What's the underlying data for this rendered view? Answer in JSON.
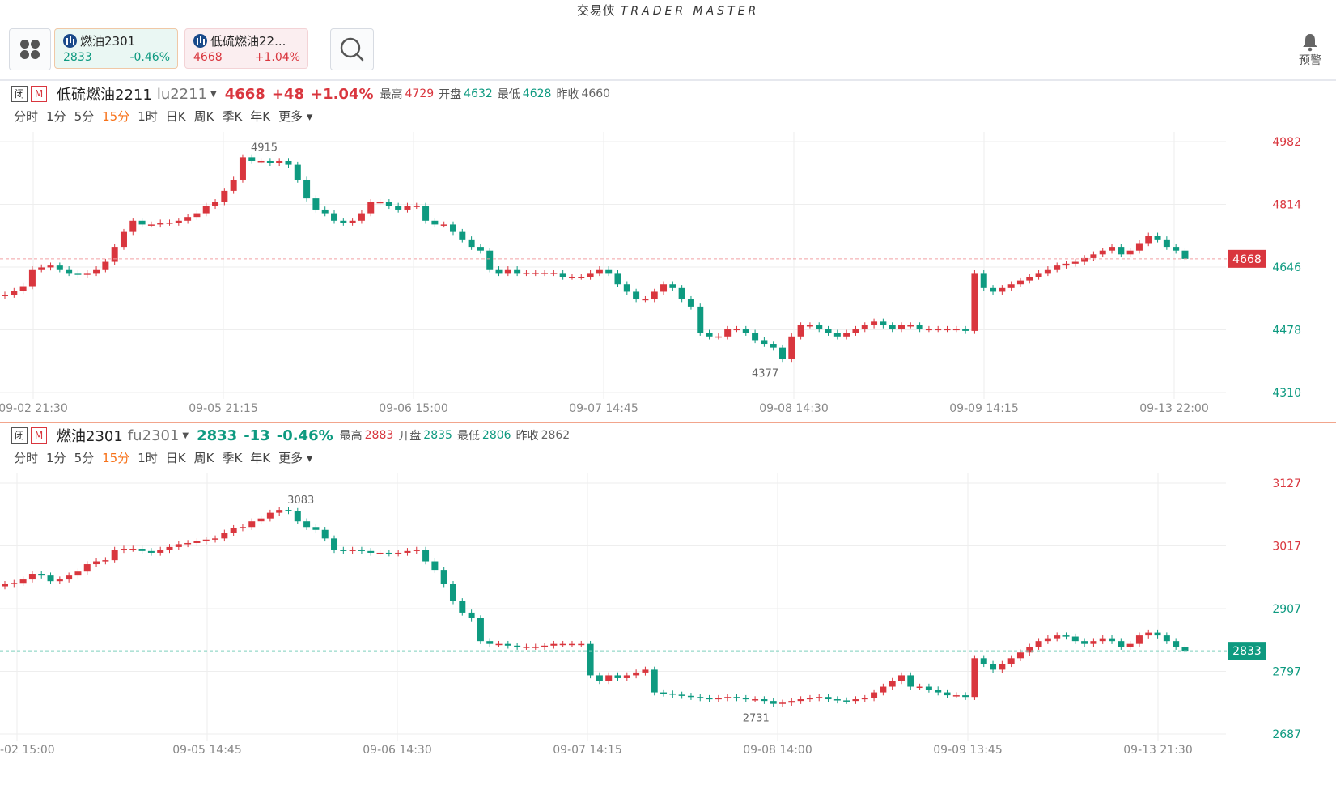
{
  "app": {
    "title_cn": "交易侠",
    "title_en": "TRADER MASTER"
  },
  "topbar": {
    "tickers": [
      {
        "name": "燃油2301",
        "price": "2833",
        "change": "-0.46%",
        "direction": "down"
      },
      {
        "name": "低硫燃油22...",
        "price": "4668",
        "change": "+1.04%",
        "direction": "up"
      }
    ],
    "alarm_label": "预警"
  },
  "colors": {
    "up": "#d9363e",
    "down": "#0e9a80",
    "accent": "#f7721a",
    "grid": "#eeeeee"
  },
  "panels": [
    {
      "tag_closed": "闭",
      "tag_m": "M",
      "name": "低硫燃油2211",
      "code": "lu2211",
      "price": "4668",
      "change": "+48",
      "pct": "+1.04%",
      "direction": "up",
      "high_label": "最高",
      "high": "4729",
      "open_label": "开盘",
      "open": "4632",
      "low_label": "最低",
      "low": "4628",
      "prev_label": "昨收",
      "prev": "4660",
      "periods": [
        "分时",
        "1分",
        "5分",
        "15分",
        "1时",
        "日K",
        "周K",
        "季K",
        "年K",
        "更多"
      ],
      "active_period": "15分",
      "y_ticks": [
        "4982",
        "4814",
        "4646",
        "4478",
        "4310"
      ],
      "x_ticks": [
        "09-02 21:30",
        "09-05 21:15",
        "09-06 15:00",
        "09-07 14:45",
        "09-08 14:30",
        "09-09 14:15",
        "09-13 22:00"
      ],
      "last_price_label": "4668",
      "max_label": "4915",
      "min_label": "4377"
    },
    {
      "tag_closed": "闭",
      "tag_m": "M",
      "name": "燃油2301",
      "code": "fu2301",
      "price": "2833",
      "change": "-13",
      "pct": "-0.46%",
      "direction": "down",
      "high_label": "最高",
      "high": "2883",
      "open_label": "开盘",
      "open": "2835",
      "low_label": "最低",
      "low": "2806",
      "prev_label": "昨收",
      "prev": "2862",
      "periods": [
        "分时",
        "1分",
        "5分",
        "15分",
        "1时",
        "日K",
        "周K",
        "季K",
        "年K",
        "更多"
      ],
      "active_period": "15分",
      "y_ticks": [
        "3127",
        "3017",
        "2907",
        "2797",
        "2687"
      ],
      "x_ticks": [
        "-02 15:00",
        "09-05 14:45",
        "09-06 14:30",
        "09-07 14:15",
        "09-08 14:00",
        "09-09 13:45",
        "09-13 21:30"
      ],
      "last_price_label": "2833",
      "max_label": "3083",
      "min_label": "2731"
    }
  ],
  "chart_data": [
    {
      "type": "candlestick",
      "title": "低硫燃油2211 lu2211",
      "ylim": [
        4310,
        4982
      ],
      "y_ticks": [
        4982,
        4814,
        4646,
        4478,
        4310
      ],
      "x_ticks": [
        "09-02 21:30",
        "09-05 21:15",
        "09-06 15:00",
        "09-07 14:45",
        "09-08 14:30",
        "09-09 14:15",
        "09-13 22:00"
      ],
      "last": 4668,
      "close_path": [
        4572,
        4582,
        4595,
        4640,
        4645,
        4650,
        4640,
        4630,
        4625,
        4630,
        4640,
        4660,
        4700,
        4740,
        4770,
        4760,
        4760,
        4765,
        4765,
        4770,
        4780,
        4790,
        4810,
        4820,
        4850,
        4880,
        4940,
        4930,
        4930,
        4925,
        4930,
        4920,
        4880,
        4830,
        4800,
        4790,
        4770,
        4765,
        4770,
        4790,
        4820,
        4820,
        4810,
        4800,
        4810,
        4810,
        4770,
        4760,
        4760,
        4740,
        4720,
        4700,
        4690,
        4640,
        4630,
        4640,
        4630,
        4630,
        4630,
        4630,
        4630,
        4620,
        4620,
        4620,
        4630,
        4640,
        4630,
        4600,
        4580,
        4560,
        4560,
        4580,
        4600,
        4590,
        4560,
        4540,
        4470,
        4460,
        4460,
        4480,
        4480,
        4470,
        4450,
        4440,
        4430,
        4400,
        4460,
        4490,
        4490,
        4480,
        4470,
        4460,
        4470,
        4480,
        4490,
        4500,
        4490,
        4480,
        4490,
        4490,
        4480,
        4480,
        4480,
        4480,
        4480,
        4475,
        4630,
        4590,
        4580,
        4590,
        4600,
        4610,
        4620,
        4630,
        4640,
        4650,
        4655,
        4660,
        4670,
        4680,
        4690,
        4700,
        4680,
        4690,
        4710,
        4730,
        4720,
        4700,
        4690,
        4668
      ]
    },
    {
      "type": "candlestick",
      "title": "燃油2301 fu2301",
      "ylim": [
        2687,
        3127
      ],
      "y_ticks": [
        3127,
        3017,
        2907,
        2797,
        2687
      ],
      "x_ticks": [
        "-02 15:00",
        "09-05 14:45",
        "09-06 14:30",
        "09-07 14:15",
        "09-08 14:00",
        "09-09 13:45",
        "09-13 21:30"
      ],
      "last": 2833,
      "close_path": [
        2950,
        2952,
        2958,
        2968,
        2965,
        2955,
        2958,
        2965,
        2972,
        2985,
        2990,
        2992,
        3010,
        3012,
        3012,
        3008,
        3005,
        3010,
        3015,
        3020,
        3022,
        3025,
        3028,
        3030,
        3040,
        3048,
        3050,
        3060,
        3065,
        3075,
        3080,
        3078,
        3060,
        3050,
        3045,
        3030,
        3010,
        3008,
        3010,
        3008,
        3005,
        3005,
        3004,
        3005,
        3008,
        3010,
        2990,
        2975,
        2950,
        2920,
        2900,
        2890,
        2850,
        2845,
        2845,
        2842,
        2840,
        2840,
        2840,
        2842,
        2845,
        2845,
        2845,
        2845,
        2790,
        2780,
        2790,
        2785,
        2790,
        2795,
        2800,
        2760,
        2758,
        2756,
        2754,
        2752,
        2750,
        2748,
        2750,
        2752,
        2750,
        2748,
        2748,
        2745,
        2740,
        2742,
        2745,
        2748,
        2750,
        2752,
        2748,
        2746,
        2745,
        2748,
        2750,
        2760,
        2770,
        2780,
        2790,
        2770,
        2770,
        2765,
        2760,
        2755,
        2755,
        2752,
        2820,
        2810,
        2800,
        2810,
        2820,
        2830,
        2840,
        2850,
        2855,
        2860,
        2858,
        2850,
        2845,
        2850,
        2855,
        2850,
        2840,
        2845,
        2860,
        2865,
        2860,
        2850,
        2840,
        2833
      ]
    }
  ]
}
